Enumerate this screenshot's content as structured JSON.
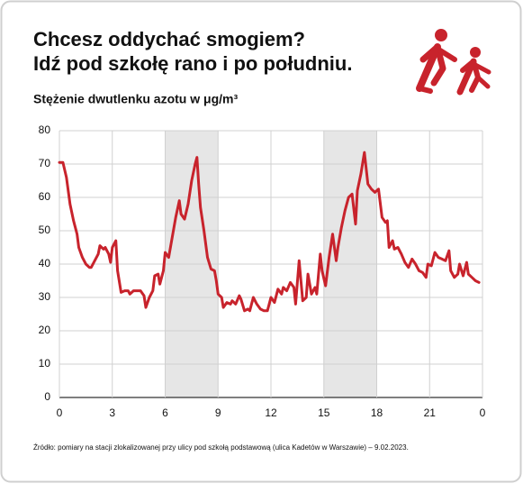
{
  "chart_data": {
    "type": "line",
    "title": [
      "Chcesz oddychać smogiem?",
      "Idź pod szkołę rano i po południu."
    ],
    "subtitle": "Stężenie dwutlenku azotu w μg/m³",
    "source": "Źródło: pomiary na stacji zlokalizowanej przy ulicy pod szkołą podstawową (ulica Kadetów w Warszawie) – 9.02.2023.",
    "color": "#c8232c",
    "grid": true,
    "shaded_ranges": [
      [
        6,
        9
      ],
      [
        15,
        18
      ]
    ],
    "xlim": [
      0,
      24
    ],
    "xticks": [
      0,
      3,
      6,
      9,
      12,
      15,
      18,
      21,
      {
        "value": 24,
        "label": "0"
      }
    ],
    "ylim": [
      0,
      80
    ],
    "yticks": [
      0,
      10,
      20,
      30,
      40,
      50,
      60,
      70,
      80
    ],
    "x": [
      0,
      0.2,
      0.4,
      0.6,
      0.8,
      1.0,
      1.1,
      1.3,
      1.5,
      1.7,
      1.8,
      2.0,
      2.2,
      2.3,
      2.5,
      2.6,
      2.8,
      2.9,
      3.0,
      3.2,
      3.3,
      3.5,
      3.7,
      3.9,
      4.0,
      4.2,
      4.4,
      4.6,
      4.8,
      4.9,
      5.1,
      5.3,
      5.4,
      5.6,
      5.7,
      5.9,
      6.0,
      6.2,
      6.4,
      6.6,
      6.8,
      6.9,
      7.1,
      7.3,
      7.5,
      7.7,
      7.8,
      7.9,
      8.0,
      8.2,
      8.4,
      8.6,
      8.8,
      8.9,
      9.0,
      9.2,
      9.3,
      9.5,
      9.7,
      9.8,
      10.0,
      10.2,
      10.3,
      10.5,
      10.7,
      10.8,
      11.0,
      11.2,
      11.4,
      11.6,
      11.8,
      12.0,
      12.2,
      12.4,
      12.6,
      12.7,
      12.9,
      13.1,
      13.3,
      13.4,
      13.6,
      13.7,
      13.8,
      14.0,
      14.1,
      14.3,
      14.5,
      14.6,
      14.8,
      14.9,
      15.1,
      15.3,
      15.5,
      15.7,
      15.8,
      16.0,
      16.2,
      16.4,
      16.6,
      16.8,
      16.9,
      17.1,
      17.3,
      17.5,
      17.7,
      17.9,
      18.1,
      18.3,
      18.5,
      18.6,
      18.7,
      18.9,
      19.0,
      19.2,
      19.4,
      19.6,
      19.8,
      20.0,
      20.2,
      20.4,
      20.6,
      20.8,
      20.9,
      21.1,
      21.3,
      21.5,
      21.7,
      21.9,
      22.1,
      22.2,
      22.4,
      22.6,
      22.7,
      22.9,
      23.1,
      23.2,
      23.4,
      23.6,
      23.8
    ],
    "values": [
      70.5,
      70.5,
      66,
      58,
      53,
      49,
      45,
      42,
      40,
      39,
      39,
      41,
      43,
      45.5,
      44.5,
      45,
      43,
      40.5,
      45,
      47,
      38,
      31.5,
      32,
      32,
      31,
      32,
      32,
      32,
      30.5,
      27,
      30,
      32,
      36.5,
      37,
      34,
      38,
      43.5,
      42,
      48,
      54,
      59,
      55,
      53.5,
      58,
      65,
      70,
      72,
      64,
      57,
      50,
      42,
      38.5,
      38,
      35,
      31,
      30,
      27,
      28.5,
      28,
      29,
      28,
      30.5,
      29.5,
      26,
      26.5,
      26,
      30,
      28,
      26.5,
      26,
      26,
      30,
      28.5,
      32.5,
      31,
      33,
      32,
      34.5,
      33,
      28,
      41,
      35,
      29,
      30,
      37,
      31,
      33,
      31,
      43,
      38,
      33.5,
      42,
      49,
      41,
      45,
      51,
      56,
      60,
      61,
      52,
      62,
      67,
      73.5,
      64,
      62.5,
      61.5,
      62.5,
      54,
      52.5,
      53,
      45,
      47,
      44.5,
      45,
      43,
      40.5,
      39,
      41.5,
      40,
      38,
      37.5,
      36,
      40,
      39.5,
      43.5,
      42,
      41.5,
      41,
      44,
      38,
      36,
      37,
      40,
      36.5,
      40.5,
      37,
      36,
      35,
      34.5
    ]
  }
}
